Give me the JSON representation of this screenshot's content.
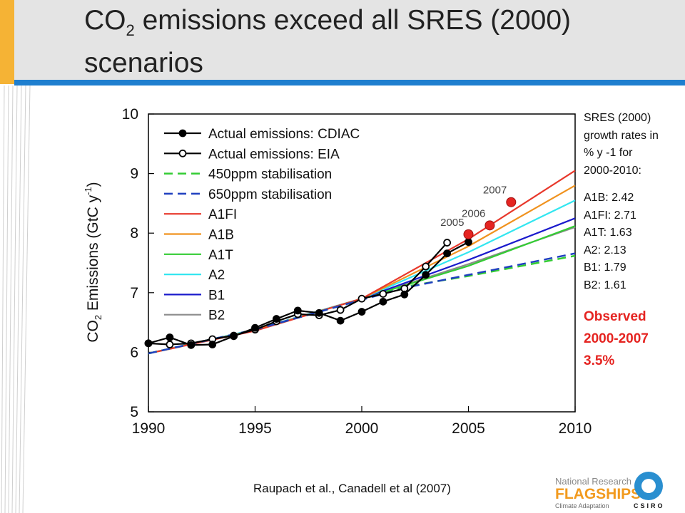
{
  "slide": {
    "title_part1": "CO",
    "title_sub": "2",
    "title_part2": " emissions exceed all SRES (2000)",
    "title_line2": "scenarios",
    "citation": "Raupach et al., Canadell et al (2007)"
  },
  "sidebar": {
    "heading": [
      "SRES (2000)",
      "growth rates in",
      "% y -1 for",
      "2000-2010:"
    ],
    "rates": [
      "A1B: 2.42",
      "A1FI: 2.71",
      "A1T: 1.63",
      "A2: 2.13",
      "B1: 1.79",
      "B2: 1.61"
    ],
    "observed": [
      "Observed",
      "2000-2007",
      "3.5%"
    ]
  },
  "logo": {
    "line1": "National Research",
    "line2": "FLAGSHIPS",
    "line3": "Climate Adaptation",
    "csiro": "CSIRO"
  },
  "colors": {
    "accent_orange": "#f5b335",
    "rule_blue": "#1f7fcf",
    "observed_red": "#e52421"
  },
  "chart_data": {
    "type": "line",
    "ylabel": "CO2 Emissions (GtC y-1)",
    "xlabel": "",
    "xlim": [
      1990,
      2010
    ],
    "ylim": [
      5,
      10
    ],
    "xticks": [
      1990,
      1995,
      2000,
      2005,
      2010
    ],
    "yticks": [
      5,
      6,
      7,
      8,
      9,
      10
    ],
    "grid": false,
    "legend_position": "top-left",
    "series": [
      {
        "name": "Actual emissions: CDIAC",
        "style": "filled-markers",
        "color": "#000000",
        "x": [
          1990,
          1991,
          1992,
          1993,
          1994,
          1995,
          1996,
          1997,
          1998,
          1999,
          2000,
          2001,
          2002,
          2003,
          2004,
          2005
        ],
        "y": [
          6.15,
          6.25,
          6.12,
          6.13,
          6.27,
          6.41,
          6.56,
          6.7,
          6.66,
          6.53,
          6.68,
          6.85,
          6.97,
          7.3,
          7.66,
          7.85
        ]
      },
      {
        "name": "Actual emissions: EIA",
        "style": "open-markers",
        "color": "#000000",
        "x": [
          1990,
          1991,
          1992,
          1993,
          1994,
          1995,
          1996,
          1997,
          1998,
          1999,
          2000,
          2001,
          2002,
          2003,
          2004
        ],
        "y": [
          6.15,
          6.13,
          6.15,
          6.22,
          6.28,
          6.38,
          6.52,
          6.64,
          6.62,
          6.71,
          6.9,
          6.98,
          7.07,
          7.44,
          7.84
        ]
      },
      {
        "name": "450ppm stabilisation",
        "style": "dashed",
        "color": "#33cc33",
        "x": [
          1990,
          1995,
          2000,
          2002,
          2005,
          2010
        ],
        "y": [
          5.98,
          6.38,
          6.88,
          7.1,
          7.28,
          7.62
        ]
      },
      {
        "name": "650ppm stabilisation",
        "style": "dashed",
        "color": "#1f3fbf",
        "x": [
          1990,
          1995,
          2000,
          2002,
          2005,
          2010
        ],
        "y": [
          5.98,
          6.38,
          6.88,
          7.08,
          7.3,
          7.66
        ]
      },
      {
        "name": "A1FI",
        "style": "solid",
        "color": "#e8382b",
        "x": [
          1990,
          1995,
          2000,
          2005,
          2010
        ],
        "y": [
          5.98,
          6.36,
          6.9,
          7.9,
          9.05
        ]
      },
      {
        "name": "A1B",
        "style": "solid",
        "color": "#f0921e",
        "x": [
          1990,
          1995,
          2000,
          2005,
          2010
        ],
        "y": [
          5.98,
          6.37,
          6.9,
          7.78,
          8.8
        ]
      },
      {
        "name": "A1T",
        "style": "solid",
        "color": "#33cc33",
        "x": [
          1990,
          1995,
          2000,
          2005,
          2010
        ],
        "y": [
          5.98,
          6.38,
          6.9,
          7.45,
          8.12
        ]
      },
      {
        "name": "A2",
        "style": "solid",
        "color": "#33e6f0",
        "x": [
          1990,
          1995,
          2000,
          2005,
          2010
        ],
        "y": [
          5.98,
          6.38,
          6.9,
          7.68,
          8.55
        ]
      },
      {
        "name": "B1",
        "style": "solid",
        "color": "#1a1acc",
        "x": [
          1990,
          1995,
          2000,
          2005,
          2010
        ],
        "y": [
          5.98,
          6.38,
          6.9,
          7.55,
          8.25
        ]
      },
      {
        "name": "B2",
        "style": "solid",
        "color": "#8c8c8c",
        "x": [
          1990,
          1995,
          2000,
          2005,
          2010
        ],
        "y": [
          5.98,
          6.38,
          6.9,
          7.48,
          8.1
        ]
      }
    ],
    "observed_points": {
      "color": "#e52421",
      "points": [
        {
          "label": "2005",
          "x": 2005,
          "y": 7.98
        },
        {
          "label": "2006",
          "x": 2006,
          "y": 8.13
        },
        {
          "label": "2007",
          "x": 2007,
          "y": 8.52
        }
      ]
    }
  }
}
